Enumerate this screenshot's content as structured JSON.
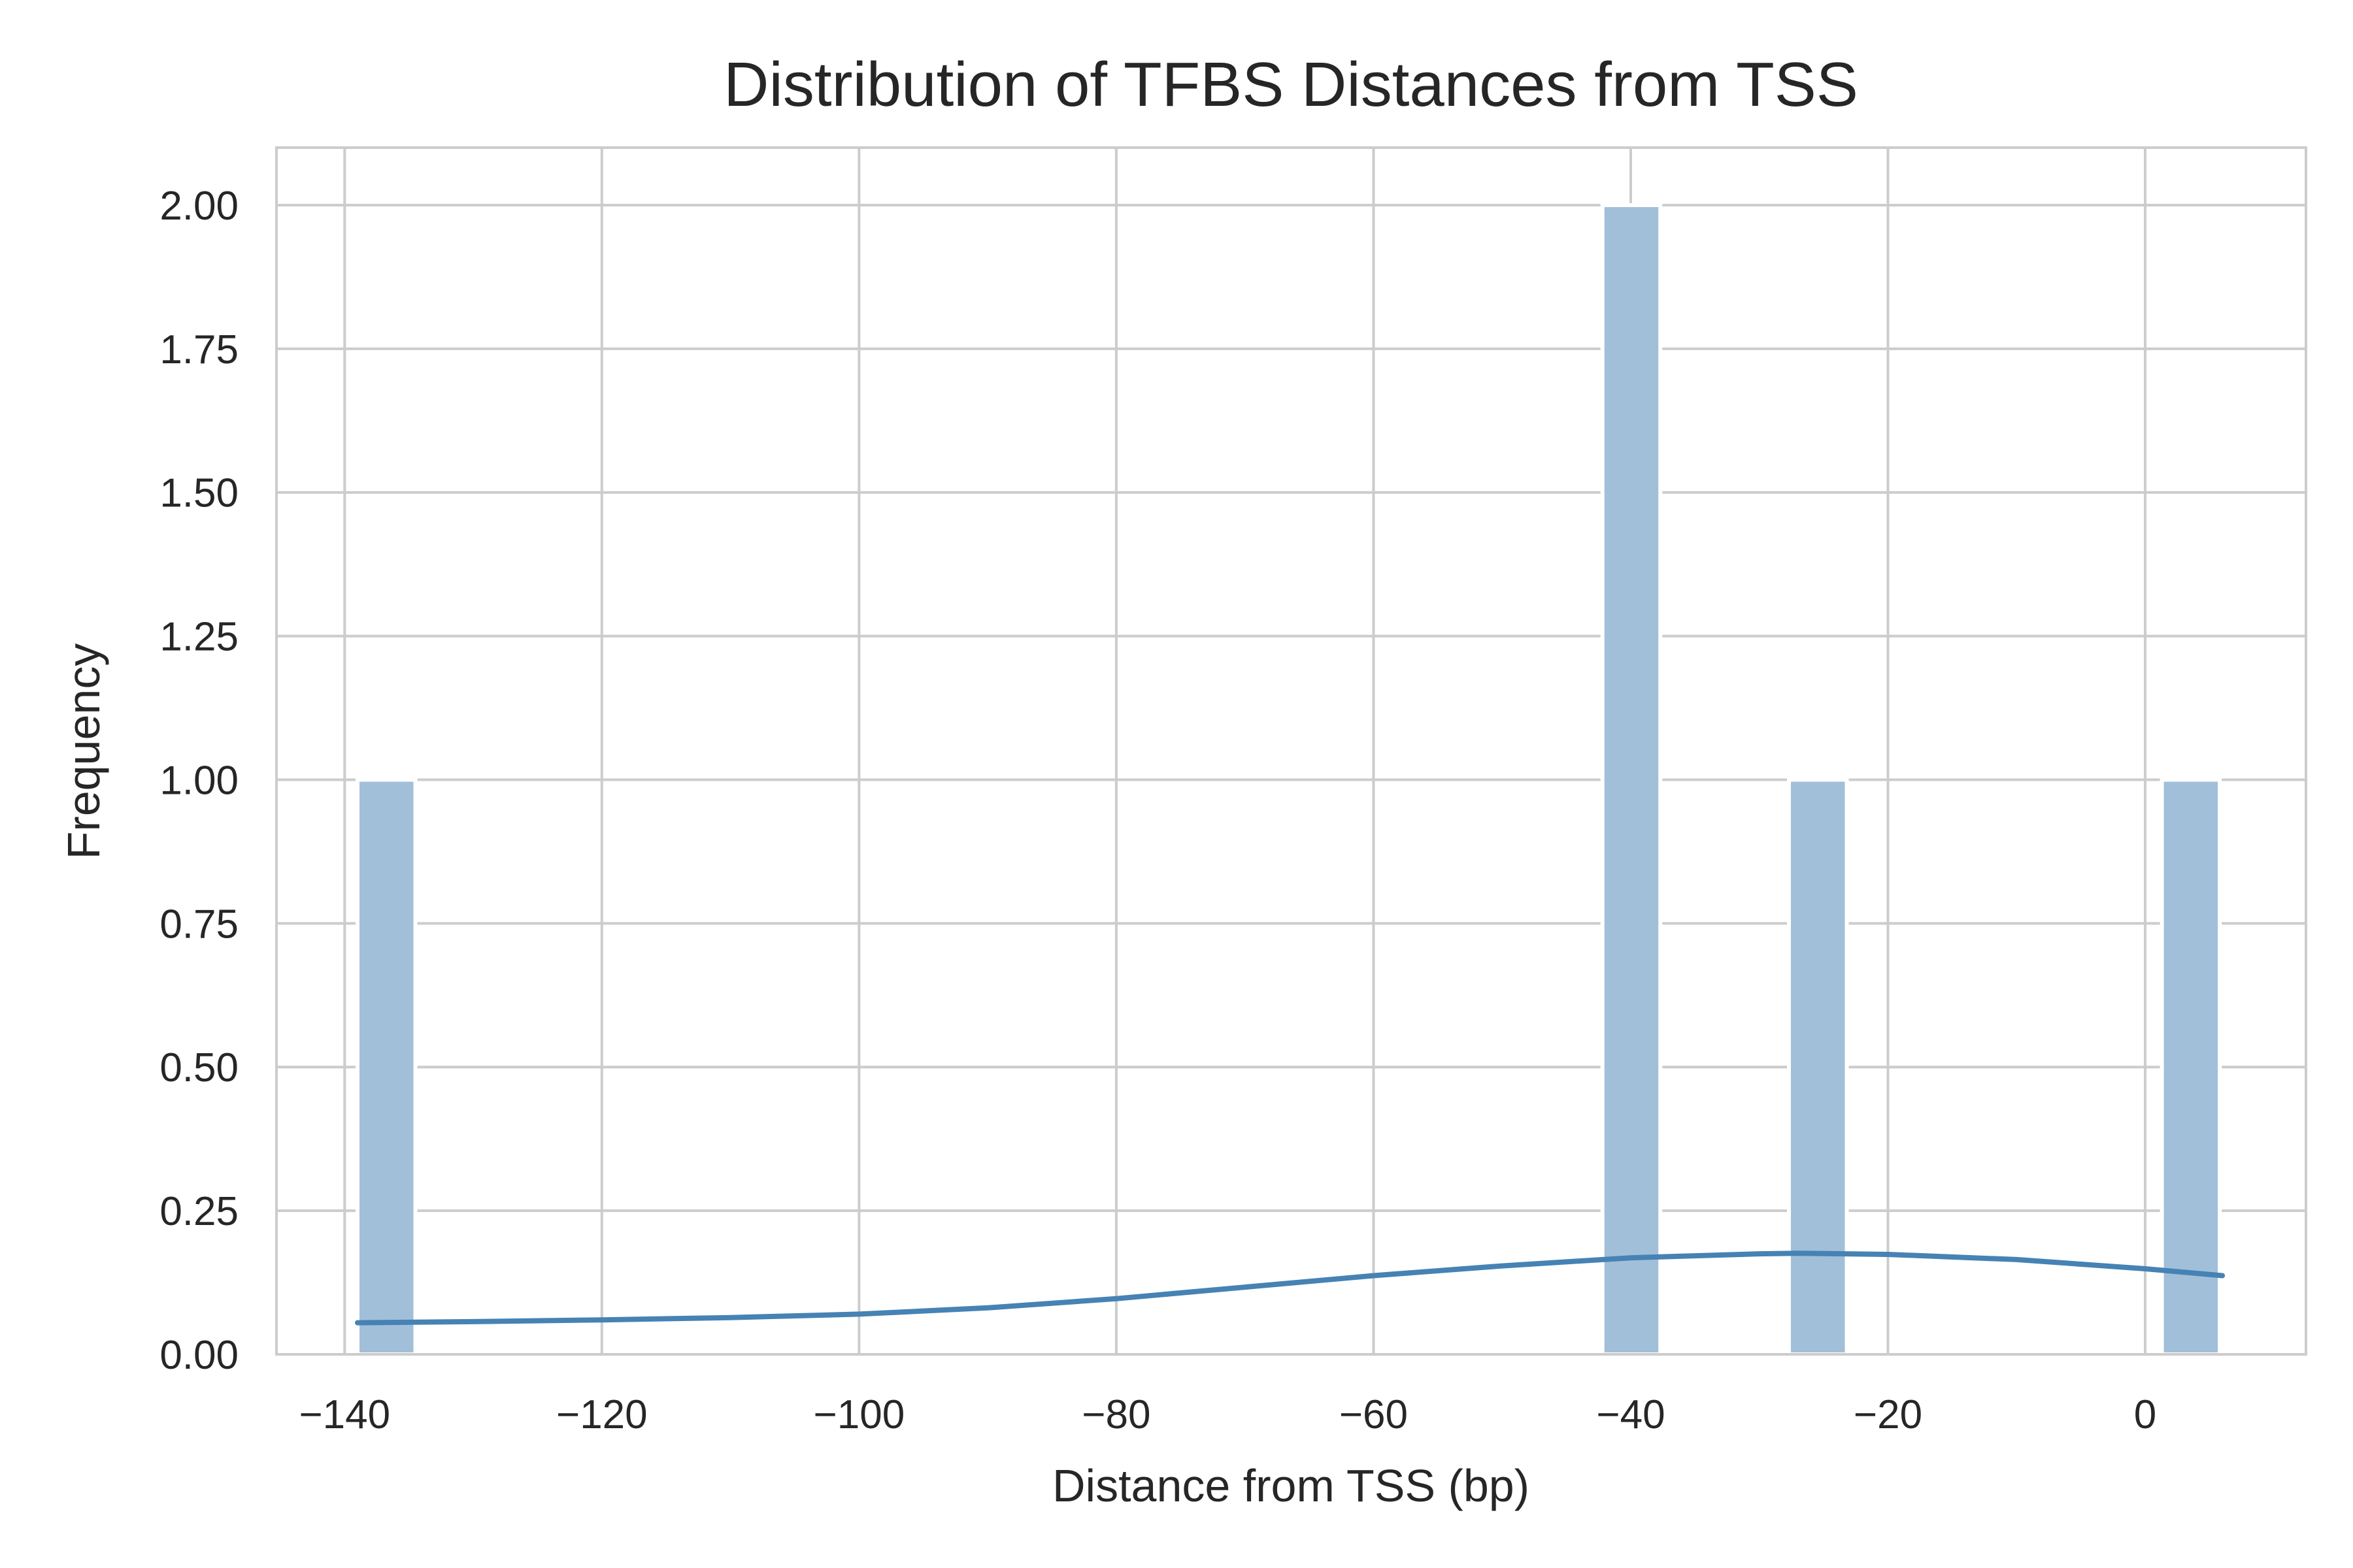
{
  "chart_data": {
    "type": "bar",
    "title": "Distribution of TFBS Distances from TSS",
    "xlabel": "Distance from TSS (bp)",
    "ylabel": "Frequency",
    "xlim": [
      -145.3,
      12.5
    ],
    "ylim": [
      0,
      2.1
    ],
    "grid": true,
    "x_ticks": [
      -140,
      -120,
      -100,
      -80,
      -60,
      -40,
      -20,
      0
    ],
    "y_ticks": [
      0,
      0.25,
      0.5,
      0.75,
      1.0,
      1.25,
      1.5,
      1.75,
      2.0
    ],
    "x_tick_labels": [
      "−140",
      "−120",
      "−100",
      "−80",
      "−60",
      "−40",
      "−20",
      "0"
    ],
    "y_tick_labels": [
      "0.00",
      "0.25",
      "0.50",
      "0.75",
      "1.00",
      "1.25",
      "1.50",
      "1.75",
      "2.00"
    ],
    "bars": [
      {
        "x0": -139.0,
        "x1": -134.5,
        "value": 1
      },
      {
        "x0": -42.2,
        "x1": -37.7,
        "value": 2
      },
      {
        "x0": -27.7,
        "x1": -23.2,
        "value": 1
      },
      {
        "x0": 1.3,
        "x1": 5.8,
        "value": 1
      }
    ],
    "kde": {
      "x": [
        -139,
        -130,
        -120,
        -110,
        -100,
        -90,
        -80,
        -70,
        -60,
        -50,
        -40,
        -30,
        -27,
        -20,
        -10,
        0,
        6
      ],
      "y": [
        0.055,
        0.057,
        0.06,
        0.064,
        0.07,
        0.081,
        0.097,
        0.117,
        0.137,
        0.154,
        0.168,
        0.175,
        0.176,
        0.174,
        0.165,
        0.149,
        0.137
      ]
    },
    "colors": {
      "bar": "#a2bfd9",
      "kde": "#4682b4",
      "grid": "#cccccc",
      "spine": "#cccccc",
      "text": "#262626"
    }
  }
}
